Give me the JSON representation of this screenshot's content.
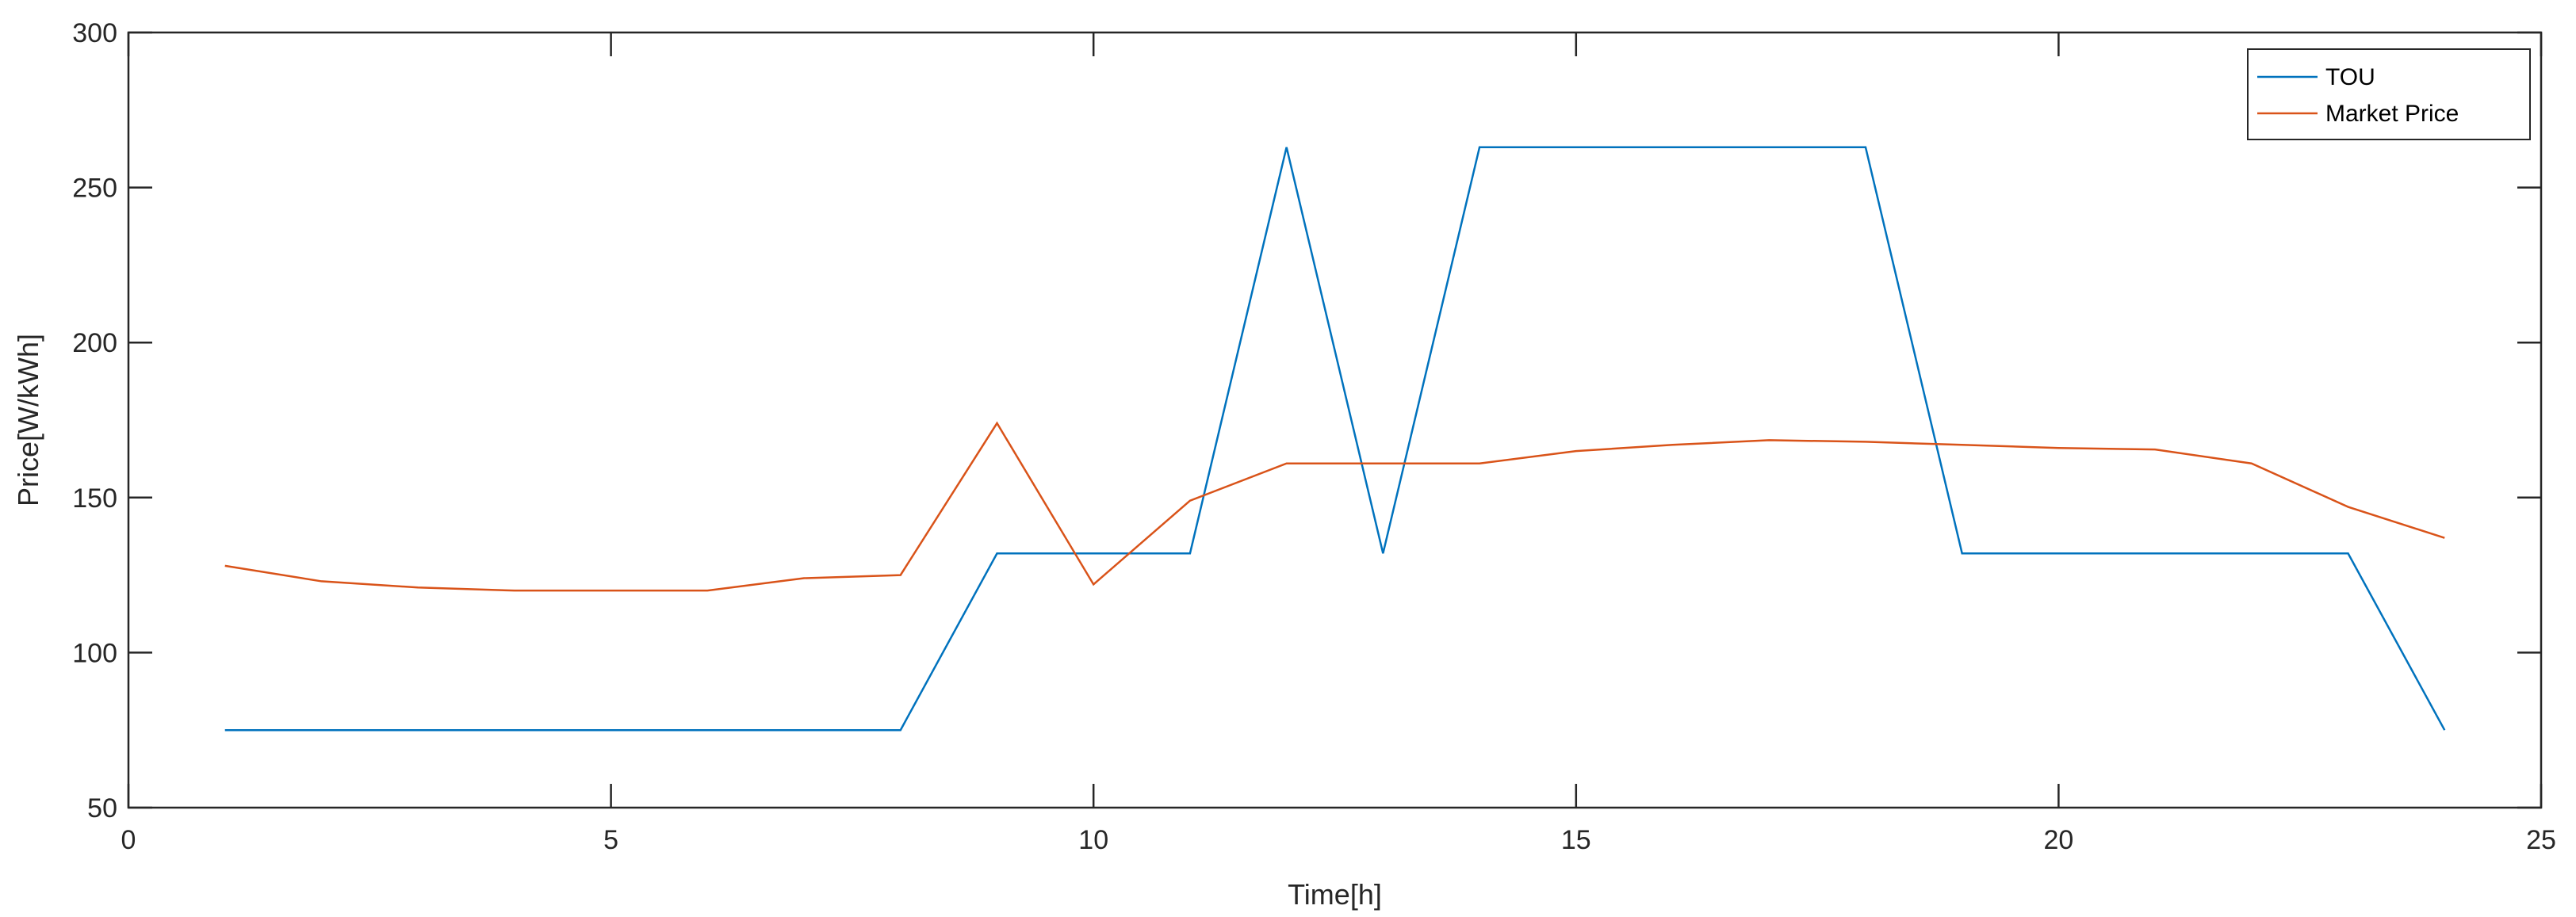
{
  "chart_data": {
    "type": "line",
    "title": "",
    "xlabel": "Time[h]",
    "ylabel": "Price[W/kWh]",
    "xlim": [
      0,
      25
    ],
    "ylim": [
      50,
      300
    ],
    "xticks": [
      0,
      5,
      10,
      15,
      20,
      25
    ],
    "yticks": [
      50,
      100,
      150,
      200,
      250,
      300
    ],
    "grid": false,
    "legend_position": "top-right",
    "x": [
      1,
      2,
      3,
      4,
      5,
      6,
      7,
      8,
      9,
      10,
      11,
      12,
      13,
      14,
      15,
      16,
      17,
      18,
      19,
      20,
      21,
      22,
      23,
      24
    ],
    "series": [
      {
        "name": "TOU",
        "color": "#0072BD",
        "values": [
          75,
          75,
          75,
          75,
          75,
          75,
          75,
          75,
          132,
          132,
          132,
          263,
          132,
          263,
          263,
          263,
          263,
          263,
          132,
          132,
          132,
          132,
          132,
          75
        ]
      },
      {
        "name": "Market Price",
        "color": "#D95319",
        "values": [
          128,
          123,
          121,
          120,
          120,
          120,
          124,
          125,
          174,
          122,
          149,
          161,
          161,
          161,
          165,
          167,
          168.5,
          168,
          167,
          166,
          165.5,
          161,
          147,
          137
        ]
      }
    ]
  }
}
